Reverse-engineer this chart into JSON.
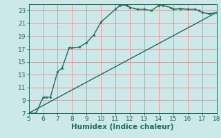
{
  "title": "",
  "xlabel": "Humidex (Indice chaleur)",
  "bg_color": "#cce8e8",
  "grid_color": "#e89898",
  "line_color": "#1a6b5a",
  "line_width": 1.0,
  "xlim": [
    5,
    18
  ],
  "ylim": [
    7,
    24
  ],
  "xticks": [
    5,
    6,
    7,
    8,
    9,
    10,
    11,
    12,
    13,
    14,
    15,
    16,
    17,
    18
  ],
  "yticks": [
    7,
    9,
    11,
    13,
    15,
    17,
    19,
    21,
    23
  ],
  "curve1_x": [
    5.0,
    5.5,
    6.0,
    6.2,
    6.5,
    7.0,
    7.3,
    7.8,
    8.0,
    8.5,
    9.0,
    9.5,
    10.0,
    11.0,
    11.3,
    11.8,
    12.0,
    12.5,
    13.0,
    13.5,
    14.0,
    14.3,
    14.8,
    15.0,
    15.5,
    16.0,
    16.5,
    16.8,
    17.0,
    17.5,
    18.0
  ],
  "curve1_y": [
    7.0,
    7.0,
    9.5,
    9.5,
    9.5,
    13.5,
    14.0,
    17.2,
    17.2,
    17.3,
    18.0,
    19.2,
    21.2,
    23.2,
    23.8,
    23.8,
    23.5,
    23.2,
    23.2,
    23.0,
    23.8,
    23.8,
    23.5,
    23.2,
    23.3,
    23.2,
    23.2,
    23.0,
    22.7,
    22.5,
    22.7
  ],
  "curve2_x": [
    5,
    18
  ],
  "curve2_y": [
    7,
    22.7
  ],
  "font_color": "#1a6b5a",
  "tick_fontsize": 6.5,
  "label_fontsize": 7.5
}
